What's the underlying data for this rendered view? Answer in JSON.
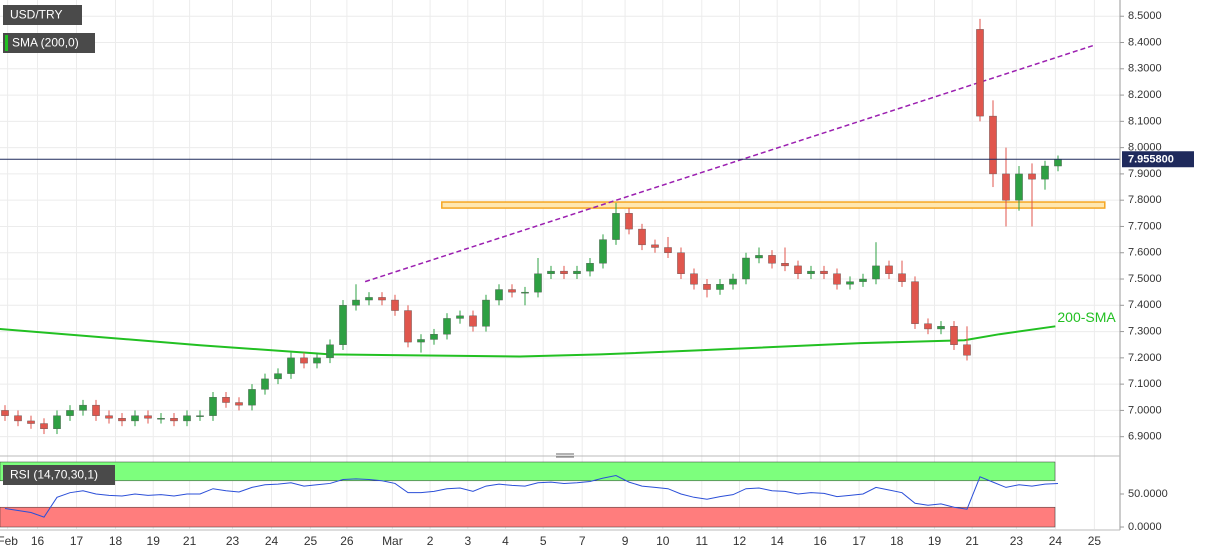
{
  "chart_data": [
    {
      "type": "candlestick",
      "title": "USD/TRY",
      "up_color": "#2ea043",
      "down_color": "#e0564d",
      "xlim": [
        -0.385,
        85.77
      ],
      "ylim": [
        6.8303,
        8.5618
      ],
      "yticks": [
        {
          "value": 6.9,
          "label": "6.9000"
        },
        {
          "value": 7.0,
          "label": "7.0000"
        },
        {
          "value": 7.1,
          "label": "7.1000"
        },
        {
          "value": 7.2,
          "label": "7.2000"
        },
        {
          "value": 7.3,
          "label": "7.3000"
        },
        {
          "value": 7.4,
          "label": "7.4000"
        },
        {
          "value": 7.5,
          "label": "7.5000"
        },
        {
          "value": 7.6,
          "label": "7.6000"
        },
        {
          "value": 7.7,
          "label": "7.7000"
        },
        {
          "value": 7.8,
          "label": "7.8000"
        },
        {
          "value": 7.9,
          "label": "7.9000"
        },
        {
          "value": 8.0,
          "label": "8.0000"
        },
        {
          "value": 8.1,
          "label": "8.1000"
        },
        {
          "value": 8.2,
          "label": "8.2000"
        },
        {
          "value": 8.3,
          "label": "8.3000"
        },
        {
          "value": 8.4,
          "label": "8.4000"
        },
        {
          "value": 8.5,
          "label": "8.5000"
        }
      ],
      "xticks": [
        {
          "value": 0.2,
          "label": "Feb"
        },
        {
          "value": 2.5,
          "label": "16"
        },
        {
          "value": 5.5,
          "label": "17"
        },
        {
          "value": 8.5,
          "label": "18"
        },
        {
          "value": 11.4,
          "label": "19"
        },
        {
          "value": 14.2,
          "label": "21"
        },
        {
          "value": 17.5,
          "label": "23"
        },
        {
          "value": 20.5,
          "label": "24"
        },
        {
          "value": 23.5,
          "label": "25"
        },
        {
          "value": 26.3,
          "label": "26"
        },
        {
          "value": 29.8,
          "label": "Mar"
        },
        {
          "value": 32.7,
          "label": "2"
        },
        {
          "value": 35.6,
          "label": "3"
        },
        {
          "value": 38.5,
          "label": "4"
        },
        {
          "value": 41.4,
          "label": "5"
        },
        {
          "value": 44.4,
          "label": "7"
        },
        {
          "value": 47.7,
          "label": "9"
        },
        {
          "value": 50.6,
          "label": "10"
        },
        {
          "value": 53.6,
          "label": "11"
        },
        {
          "value": 56.5,
          "label": "12"
        },
        {
          "value": 59.4,
          "label": "14"
        },
        {
          "value": 62.7,
          "label": "16"
        },
        {
          "value": 65.7,
          "label": "17"
        },
        {
          "value": 68.6,
          "label": "18"
        },
        {
          "value": 71.5,
          "label": "19"
        },
        {
          "value": 74.4,
          "label": "21"
        },
        {
          "value": 77.8,
          "label": "23"
        },
        {
          "value": 80.8,
          "label": "24"
        },
        {
          "value": 83.8,
          "label": "25"
        }
      ],
      "grid": true,
      "open": [
        7.0,
        6.98,
        6.96,
        6.95,
        6.93,
        6.98,
        7.0,
        7.02,
        6.98,
        6.97,
        6.96,
        6.98,
        6.97,
        6.97,
        6.96,
        6.98,
        6.98,
        7.05,
        7.03,
        7.02,
        7.08,
        7.12,
        7.14,
        7.2,
        7.18,
        7.2,
        7.25,
        7.4,
        7.42,
        7.43,
        7.42,
        7.38,
        7.26,
        7.27,
        7.29,
        7.35,
        7.36,
        7.32,
        7.42,
        7.46,
        7.45,
        7.45,
        7.52,
        7.53,
        7.52,
        7.53,
        7.56,
        7.65,
        7.75,
        7.69,
        7.63,
        7.62,
        7.6,
        7.52,
        7.48,
        7.46,
        7.48,
        7.5,
        7.58,
        7.59,
        7.56,
        7.55,
        7.52,
        7.53,
        7.52,
        7.48,
        7.49,
        7.5,
        7.55,
        7.52,
        7.49,
        7.33,
        7.31,
        7.32,
        7.25,
        8.45,
        8.12,
        7.9,
        7.8,
        7.9,
        7.88,
        7.93
      ],
      "high": [
        7.02,
        7.0,
        6.98,
        6.97,
        7.0,
        7.02,
        7.04,
        7.04,
        7.0,
        6.99,
        7.0,
        7.0,
        6.99,
        6.99,
        7.0,
        7.0,
        7.07,
        7.07,
        7.05,
        7.1,
        7.14,
        7.16,
        7.22,
        7.22,
        7.22,
        7.27,
        7.42,
        7.48,
        7.45,
        7.45,
        7.44,
        7.4,
        7.29,
        7.31,
        7.37,
        7.38,
        7.38,
        7.44,
        7.48,
        7.48,
        7.47,
        7.58,
        7.55,
        7.55,
        7.55,
        7.58,
        7.67,
        7.79,
        7.77,
        7.71,
        7.65,
        7.66,
        7.62,
        7.54,
        7.5,
        7.5,
        7.52,
        7.6,
        7.62,
        7.61,
        7.62,
        7.57,
        7.55,
        7.55,
        7.54,
        7.51,
        7.52,
        7.64,
        7.57,
        7.57,
        7.51,
        7.35,
        7.34,
        7.34,
        7.32,
        8.49,
        8.18,
        8.0,
        7.93,
        7.94,
        7.95,
        7.97
      ],
      "low": [
        6.96,
        6.94,
        6.93,
        6.91,
        6.91,
        6.96,
        6.98,
        6.96,
        6.95,
        6.94,
        6.94,
        6.95,
        6.95,
        6.94,
        6.94,
        6.96,
        6.96,
        7.01,
        7.0,
        7.0,
        7.06,
        7.1,
        7.12,
        7.16,
        7.16,
        7.18,
        7.23,
        7.38,
        7.4,
        7.4,
        7.36,
        7.24,
        7.22,
        7.25,
        7.27,
        7.33,
        7.3,
        7.3,
        7.4,
        7.43,
        7.4,
        7.43,
        7.5,
        7.5,
        7.5,
        7.51,
        7.54,
        7.63,
        7.67,
        7.61,
        7.6,
        7.58,
        7.5,
        7.46,
        7.43,
        7.44,
        7.46,
        7.48,
        7.56,
        7.54,
        7.53,
        7.5,
        7.5,
        7.5,
        7.46,
        7.46,
        7.47,
        7.48,
        7.5,
        7.47,
        7.31,
        7.29,
        7.29,
        7.23,
        7.19,
        8.1,
        7.85,
        7.7,
        7.76,
        7.7,
        7.84,
        7.91
      ],
      "close": [
        6.98,
        6.96,
        6.95,
        6.93,
        6.98,
        7.0,
        7.02,
        6.98,
        6.97,
        6.96,
        6.98,
        6.97,
        6.97,
        6.96,
        6.98,
        6.98,
        7.05,
        7.03,
        7.02,
        7.08,
        7.12,
        7.14,
        7.2,
        7.18,
        7.2,
        7.25,
        7.4,
        7.42,
        7.43,
        7.42,
        7.38,
        7.26,
        7.27,
        7.29,
        7.35,
        7.36,
        7.32,
        7.42,
        7.46,
        7.45,
        7.45,
        7.52,
        7.53,
        7.52,
        7.53,
        7.56,
        7.65,
        7.75,
        7.69,
        7.63,
        7.62,
        7.6,
        7.52,
        7.48,
        7.46,
        7.48,
        7.5,
        7.58,
        7.59,
        7.56,
        7.55,
        7.52,
        7.53,
        7.52,
        7.48,
        7.49,
        7.5,
        7.55,
        7.52,
        7.49,
        7.33,
        7.31,
        7.32,
        7.25,
        7.21,
        8.12,
        7.9,
        7.8,
        7.9,
        7.88,
        7.93,
        7.9558
      ],
      "sma": {
        "name": "SMA (200,0)",
        "color": "#22c022",
        "annotation": "200-SMA",
        "x": [
          -0.4,
          15,
          25,
          39.6,
          45.8,
          53.5,
          65.8,
          73.8,
          76.5,
          80.8
        ],
        "values": [
          7.31,
          7.248,
          7.213,
          7.205,
          7.213,
          7.229,
          7.256,
          7.267,
          7.29,
          7.32
        ]
      },
      "last_price": {
        "value": 7.9558,
        "label": "7.955800"
      },
      "trend_lines": [
        {
          "x": [
            27.7,
            83.8
          ],
          "y": [
            7.49,
            8.39
          ],
          "color": "#9b1fb0"
        }
      ],
      "zones": [
        {
          "x": [
            33.6,
            84.6
          ],
          "y": [
            7.77,
            7.793
          ],
          "color": "#f5a623"
        }
      ]
    },
    {
      "type": "line",
      "title": "RSI (14,70,30,1)",
      "color": "#2b4fd8",
      "overbought": 70,
      "oversold": 30,
      "ylim": [
        -3,
        101.5
      ],
      "yticks": [
        {
          "value": 0,
          "label": "0.0000"
        },
        {
          "value": 50,
          "label": "50.0000"
        }
      ],
      "values": [
        28,
        25,
        22,
        15,
        45,
        52,
        55,
        50,
        48,
        47,
        50,
        48,
        49,
        47,
        50,
        50,
        58,
        55,
        53,
        60,
        64,
        65,
        67,
        62,
        64,
        66,
        72,
        73,
        72,
        70,
        66,
        52,
        52,
        54,
        58,
        59,
        54,
        62,
        65,
        63,
        62,
        67,
        68,
        66,
        67,
        69,
        74,
        78,
        68,
        62,
        60,
        58,
        50,
        45,
        42,
        46,
        49,
        58,
        59,
        55,
        54,
        50,
        52,
        51,
        46,
        48,
        50,
        60,
        56,
        52,
        36,
        33,
        35,
        30,
        27,
        76,
        68,
        60,
        64,
        62,
        65,
        66
      ]
    }
  ]
}
